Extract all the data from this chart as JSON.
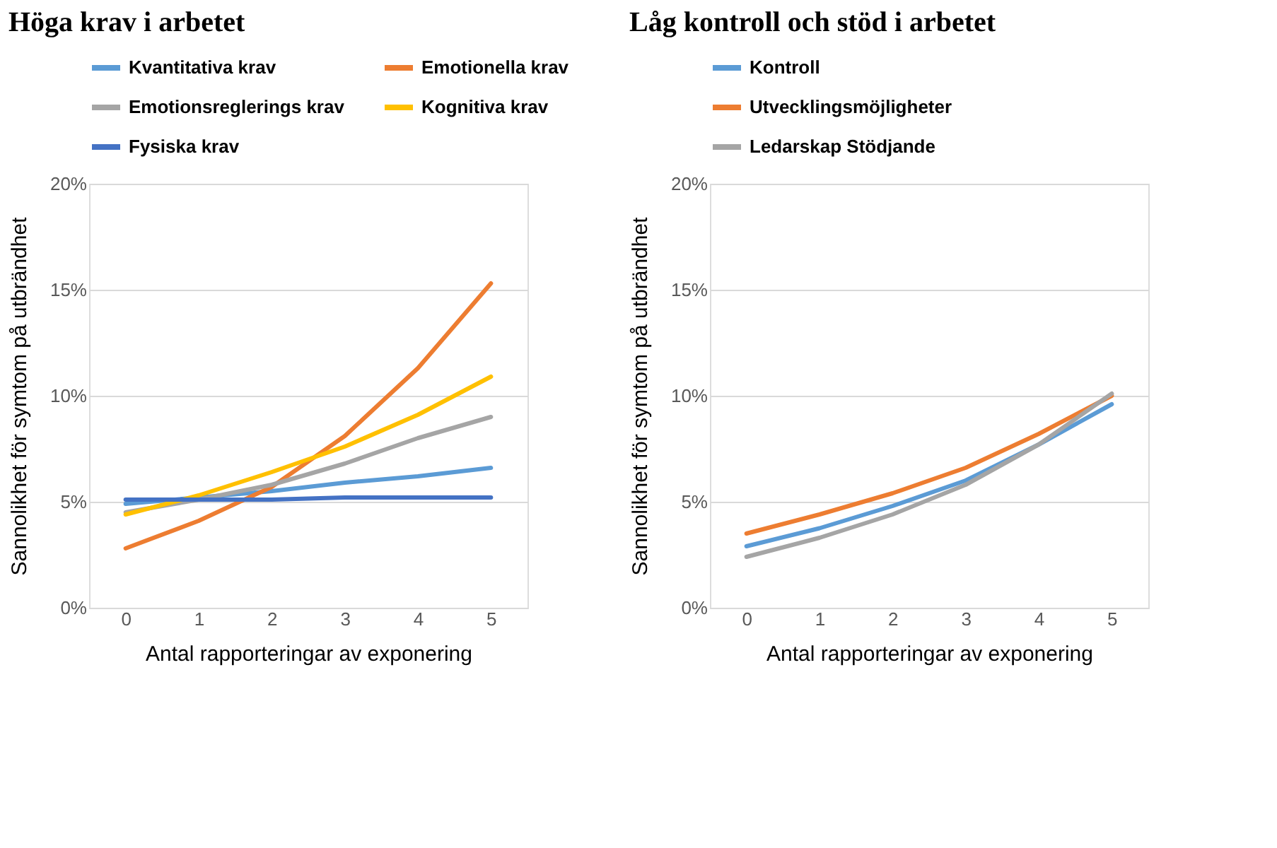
{
  "chart_data": [
    {
      "type": "line",
      "title": "Höga krav i arbetet",
      "xlabel": "Antal rapporteringar av exponering",
      "ylabel": "Sannolikhet för symtom på utbrändhet",
      "categories": [
        "0",
        "1",
        "2",
        "3",
        "4",
        "5"
      ],
      "ylim": [
        0,
        20
      ],
      "yticks": [
        {
          "value": 0,
          "label": "0%"
        },
        {
          "value": 5,
          "label": "5%"
        },
        {
          "value": 10,
          "label": "10%"
        },
        {
          "value": 15,
          "label": "15%"
        },
        {
          "value": 20,
          "label": "20%"
        }
      ],
      "grid": "y",
      "legend": "top",
      "marker": "none",
      "line_style": "solid",
      "series": [
        {
          "name": "Kvantitativa krav",
          "color": "#5b9bd5",
          "values": [
            4.9,
            5.2,
            5.5,
            5.9,
            6.2,
            6.6
          ]
        },
        {
          "name": "Emotionella krav",
          "color": "#ed7d31",
          "values": [
            2.8,
            4.1,
            5.7,
            8.1,
            11.3,
            15.3
          ]
        },
        {
          "name": "Emotionsreglerings krav",
          "color": "#a5a5a5",
          "values": [
            4.5,
            5.1,
            5.8,
            6.8,
            8.0,
            9.0
          ]
        },
        {
          "name": "Kognitiva krav",
          "color": "#ffc000",
          "values": [
            4.4,
            5.3,
            6.4,
            7.6,
            9.1,
            10.9
          ]
        },
        {
          "name": "Fysiska krav",
          "color": "#4472c4",
          "values": [
            5.1,
            5.1,
            5.1,
            5.2,
            5.2,
            5.2
          ]
        }
      ]
    },
    {
      "type": "line",
      "title": "Låg kontroll och stöd i arbetet",
      "xlabel": "Antal rapporteringar av exponering",
      "ylabel": "Sannolikhet för symtom på utbrändhet",
      "categories": [
        "0",
        "1",
        "2",
        "3",
        "4",
        "5"
      ],
      "ylim": [
        0,
        20
      ],
      "yticks": [
        {
          "value": 0,
          "label": "0%"
        },
        {
          "value": 5,
          "label": "5%"
        },
        {
          "value": 10,
          "label": "10%"
        },
        {
          "value": 15,
          "label": "15%"
        },
        {
          "value": 20,
          "label": "20%"
        }
      ],
      "grid": "y",
      "legend": "top",
      "marker": "none",
      "line_style": "solid",
      "series": [
        {
          "name": "Kontroll",
          "color": "#5b9bd5",
          "values": [
            2.9,
            3.75,
            4.8,
            6.0,
            7.7,
            9.6
          ]
        },
        {
          "name": "Utvecklingsmöjligheter",
          "color": "#ed7d31",
          "values": [
            3.5,
            4.4,
            5.4,
            6.6,
            8.2,
            10.0
          ]
        },
        {
          "name": "Ledarskap Stödjande",
          "color": "#a5a5a5",
          "values": [
            2.4,
            3.3,
            4.4,
            5.8,
            7.7,
            10.1
          ]
        }
      ]
    }
  ]
}
